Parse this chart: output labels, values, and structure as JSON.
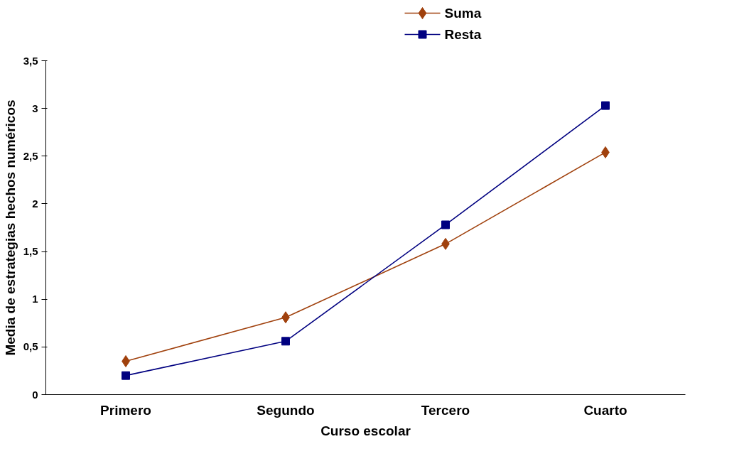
{
  "chart_data": {
    "type": "line",
    "xlabel": "Curso escolar",
    "ylabel": "Media de estrategias hechos numéricos",
    "categories": [
      "Primero",
      "Segundo",
      "Tercero",
      "Cuarto"
    ],
    "series": [
      {
        "name": "Suma",
        "color": "#a0410d",
        "marker": "diamond",
        "values": [
          0.35,
          0.81,
          1.58,
          2.54
        ]
      },
      {
        "name": "Resta",
        "color": "#000080",
        "marker": "square",
        "values": [
          0.2,
          0.56,
          1.78,
          3.03
        ]
      }
    ],
    "ylim": [
      0,
      3.5
    ],
    "yticks": [
      0,
      {
        "value": 0.5,
        "label": "0,5"
      },
      1,
      {
        "value": 1.5,
        "label": "1,5"
      },
      2,
      {
        "value": 2.5,
        "label": "2,5"
      },
      3,
      {
        "value": 3.5,
        "label": "3,5"
      }
    ],
    "grid": false,
    "legend": "top",
    "line_style": "solid"
  }
}
